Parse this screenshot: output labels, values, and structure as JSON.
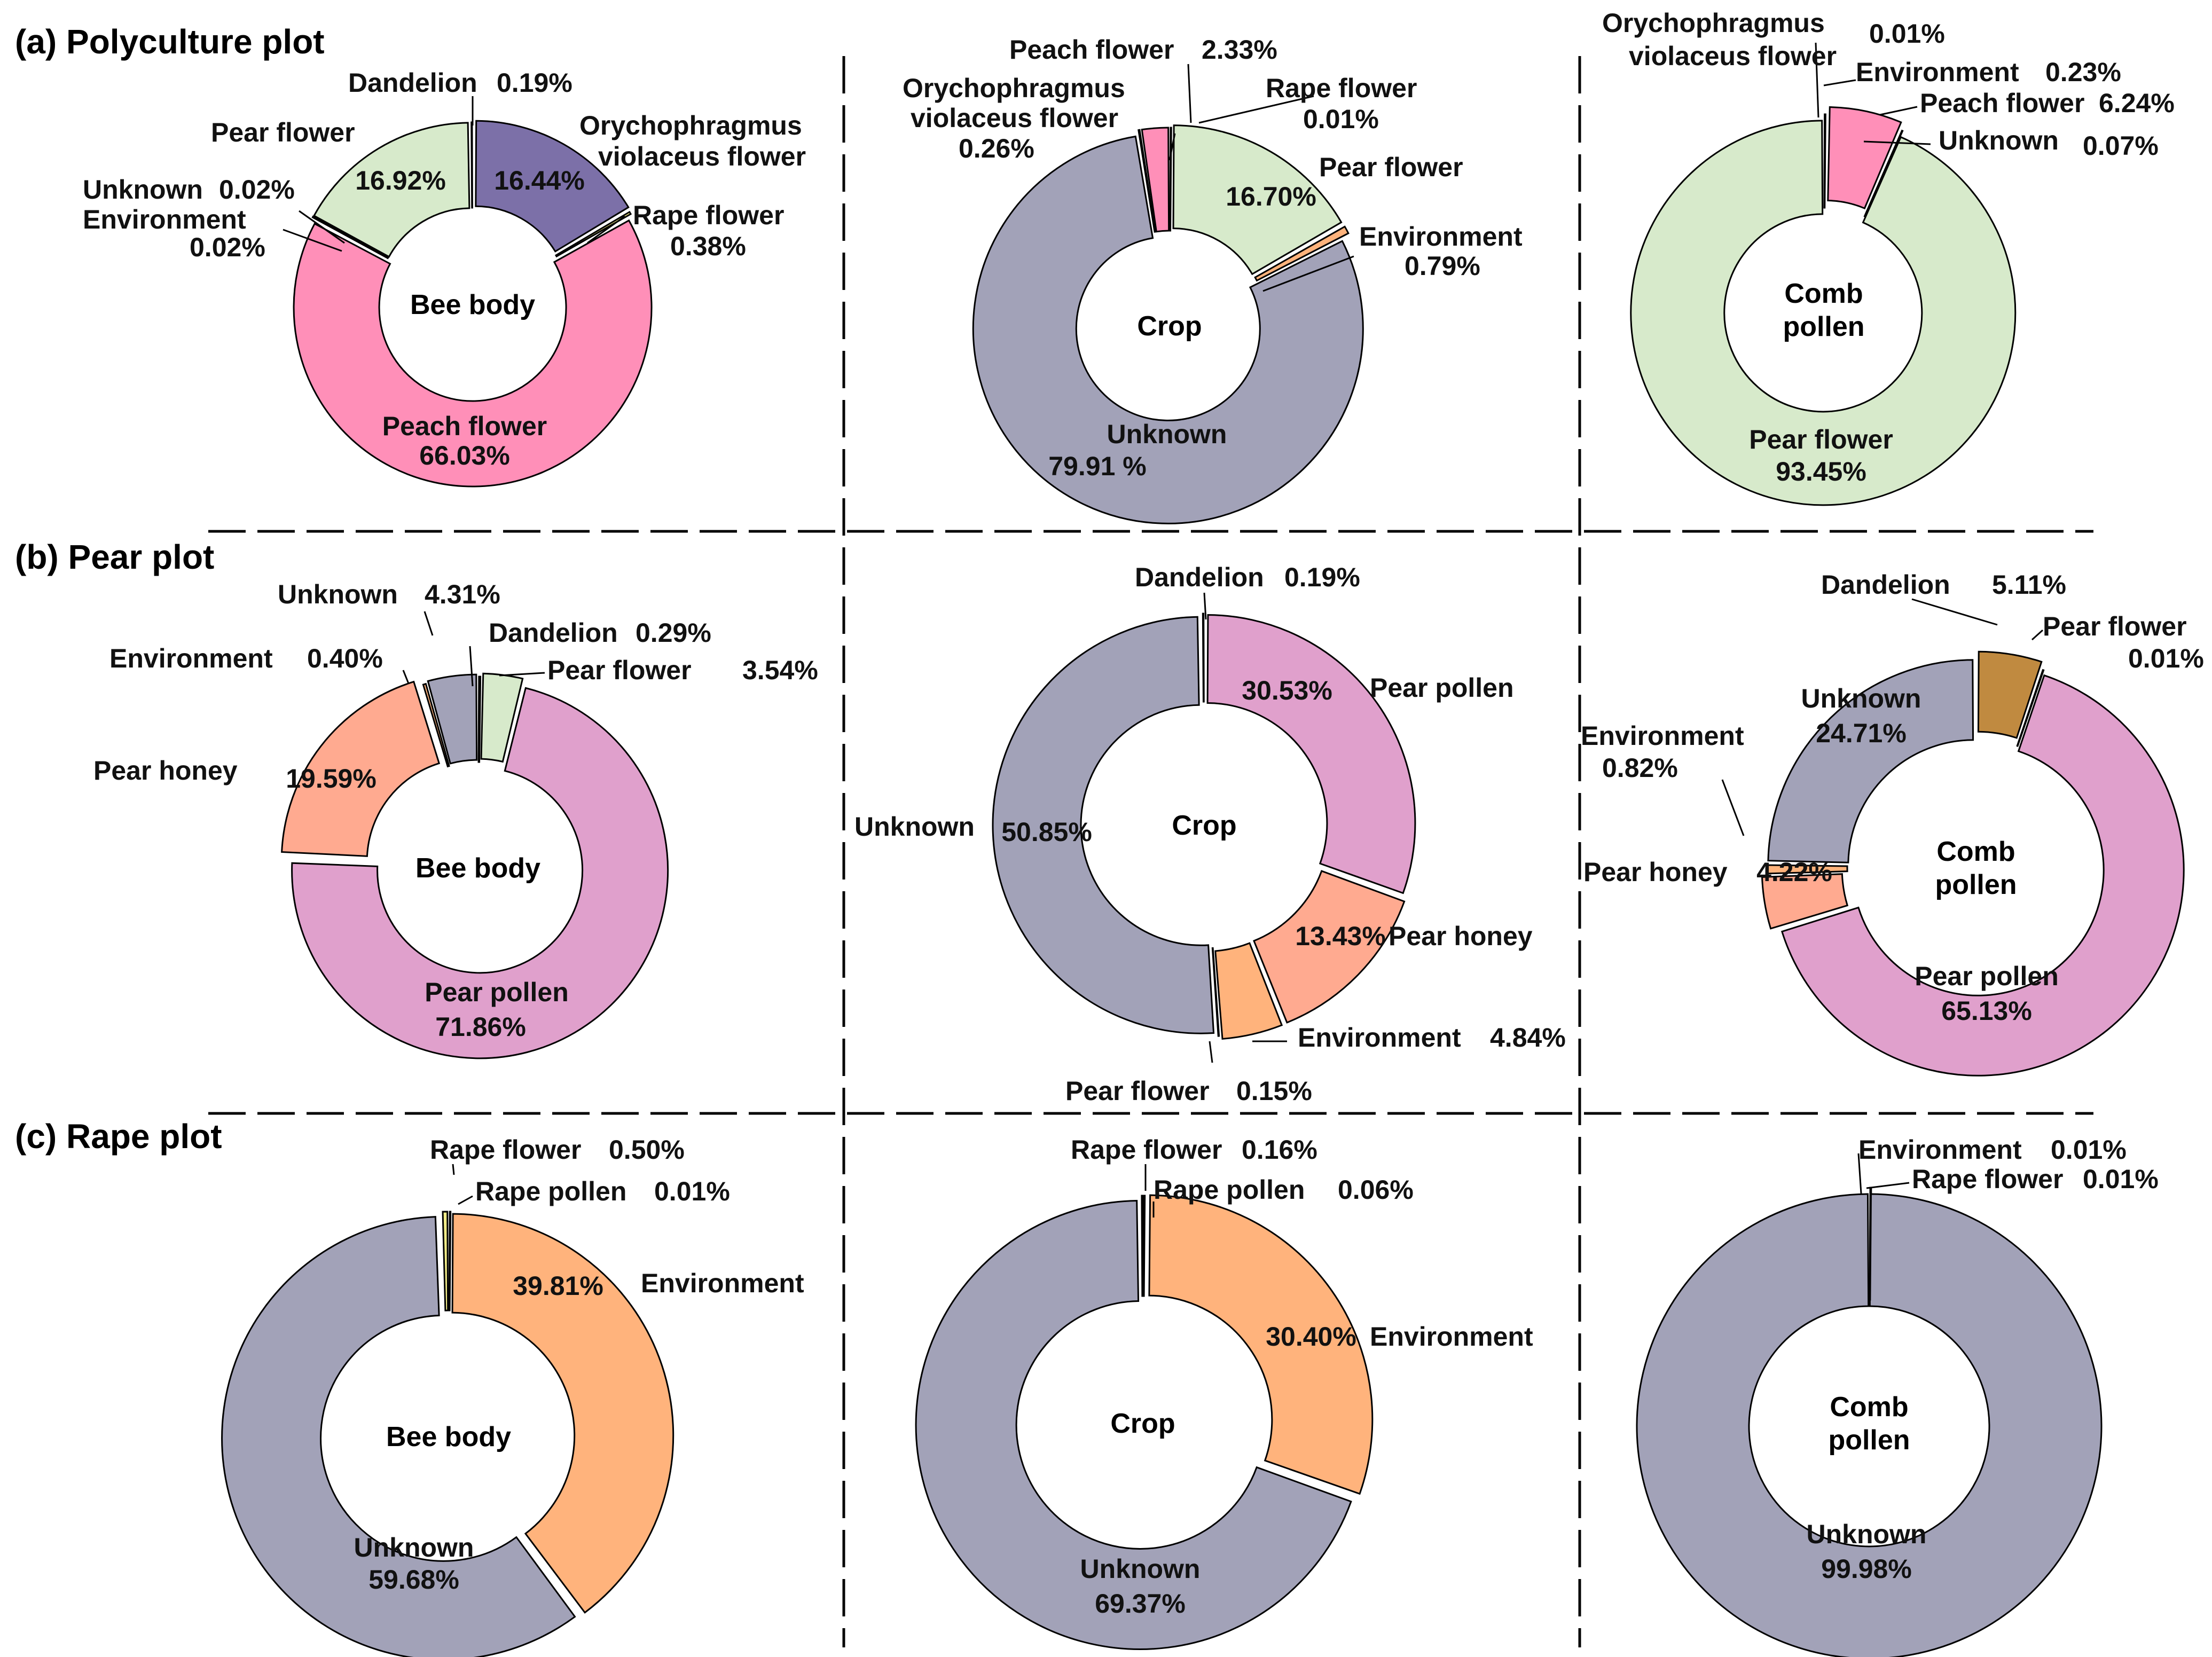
{
  "rows": [
    {
      "title": "(a) Polyculture plot"
    },
    {
      "title": "(b) Pear plot"
    },
    {
      "title": "(c) Rape plot"
    }
  ],
  "colors": {
    "Peach flower": "#FF8FB8",
    "Pear flower": "#D7EACB",
    "Orychophragmus violaceus flower": "#7C70A8",
    "Unknown": "#A2A2B8",
    "Environment": "#FFB37C",
    "Pear pollen": "#E0A0CC",
    "Pear honey": "#FFAA90",
    "Dandelion": "#C08A40",
    "Rape flower": "#F2EC88",
    "Rape pollen": "#F2EC88"
  },
  "chart_data": [
    {
      "id": "a1",
      "type": "pie",
      "title": "",
      "center_label": "Bee body",
      "slices": [
        {
          "label": "Orychophragmus violaceus flower",
          "value": 16.44,
          "text": "16.44%"
        },
        {
          "label": "Rape flower",
          "value": 0.38,
          "text": "0.38%"
        },
        {
          "label": "Peach flower",
          "value": 66.03,
          "text": "66.03%"
        },
        {
          "label": "Environment",
          "value": 0.02,
          "text": "0.02%"
        },
        {
          "label": "Unknown",
          "value": 0.02,
          "text": "0.02%"
        },
        {
          "label": "Pear flower",
          "value": 16.92,
          "text": "16.92%"
        },
        {
          "label": "Dandelion",
          "value": 0.19,
          "text": "0.19%"
        }
      ]
    },
    {
      "id": "a2",
      "type": "pie",
      "title": "",
      "center_label": "Crop",
      "slices": [
        {
          "label": "Rape flower",
          "value": 0.01,
          "text": "0.01%"
        },
        {
          "label": "Pear flower",
          "value": 16.7,
          "text": "16.70%"
        },
        {
          "label": "Environment",
          "value": 0.79,
          "text": "0.79%"
        },
        {
          "label": "Unknown",
          "value": 79.91,
          "text": "79.91 %"
        },
        {
          "label": "Orychophragmus violaceus flower",
          "value": 0.26,
          "text": "0.26%"
        },
        {
          "label": "Peach flower",
          "value": 2.33,
          "text": "2.33%"
        }
      ]
    },
    {
      "id": "a3",
      "type": "pie",
      "title": "",
      "center_label": "Comb pollen",
      "slices": [
        {
          "label": "Environment",
          "value": 0.23,
          "text": "0.23%"
        },
        {
          "label": "Peach flower",
          "value": 6.24,
          "text": "6.24%"
        },
        {
          "label": "Unknown",
          "value": 0.07,
          "text": "0.07%"
        },
        {
          "label": "Pear flower",
          "value": 93.45,
          "text": "93.45%"
        },
        {
          "label": "Orychophragmus violaceus flower",
          "value": 0.01,
          "text": "0.01%"
        }
      ]
    },
    {
      "id": "b1",
      "type": "pie",
      "title": "",
      "center_label": "Bee body",
      "slices": [
        {
          "label": "Dandelion",
          "value": 0.29,
          "text": "0.29%"
        },
        {
          "label": "Pear flower",
          "value": 3.54,
          "text": "3.54%"
        },
        {
          "label": "Pear pollen",
          "value": 71.86,
          "text": "71.86%"
        },
        {
          "label": "Pear honey",
          "value": 19.59,
          "text": "19.59%"
        },
        {
          "label": "Environment",
          "value": 0.4,
          "text": "0.40%"
        },
        {
          "label": "Unknown",
          "value": 4.31,
          "text": "4.31%"
        }
      ]
    },
    {
      "id": "b2",
      "type": "pie",
      "title": "",
      "center_label": "Crop",
      "slices": [
        {
          "label": "Pear pollen",
          "value": 30.53,
          "text": "30.53%"
        },
        {
          "label": "Pear honey",
          "value": 13.43,
          "text": "13.43%"
        },
        {
          "label": "Environment",
          "value": 4.84,
          "text": "4.84%"
        },
        {
          "label": "Pear flower",
          "value": 0.15,
          "text": "0.15%"
        },
        {
          "label": "Unknown",
          "value": 50.85,
          "text": "50.85%"
        },
        {
          "label": "Dandelion",
          "value": 0.19,
          "text": "0.19%"
        }
      ]
    },
    {
      "id": "b3",
      "type": "pie",
      "title": "",
      "center_label": "Comb pollen",
      "slices": [
        {
          "label": "Dandelion",
          "value": 5.11,
          "text": "5.11%"
        },
        {
          "label": "Pear flower",
          "value": 0.01,
          "text": "0.01%"
        },
        {
          "label": "Pear pollen",
          "value": 65.13,
          "text": "65.13%"
        },
        {
          "label": "Pear honey",
          "value": 4.22,
          "text": "4.22%"
        },
        {
          "label": "Environment",
          "value": 0.82,
          "text": "0.82%"
        },
        {
          "label": "Unknown",
          "value": 24.71,
          "text": "24.71%"
        }
      ]
    },
    {
      "id": "c1",
      "type": "pie",
      "title": "",
      "center_label": "Bee body",
      "slices": [
        {
          "label": "Rape pollen",
          "value": 0.01,
          "text": "0.01%"
        },
        {
          "label": "Environment",
          "value": 39.81,
          "text": "39.81%"
        },
        {
          "label": "Unknown",
          "value": 59.68,
          "text": "59.68%"
        },
        {
          "label": "Rape flower",
          "value": 0.5,
          "text": "0.50%"
        }
      ]
    },
    {
      "id": "c2",
      "type": "pie",
      "title": "",
      "center_label": "Crop",
      "slices": [
        {
          "label": "Rape pollen",
          "value": 0.06,
          "text": "0.06%"
        },
        {
          "label": "Environment",
          "value": 30.4,
          "text": "30.40%"
        },
        {
          "label": "Unknown",
          "value": 69.37,
          "text": "69.37%"
        },
        {
          "label": "Rape flower",
          "value": 0.16,
          "text": "0.16%"
        }
      ]
    },
    {
      "id": "c3",
      "type": "pie",
      "title": "",
      "center_label": "Comb pollen",
      "slices": [
        {
          "label": "Rape flower",
          "value": 0.01,
          "text": "0.01%"
        },
        {
          "label": "Unknown",
          "value": 99.98,
          "text": "99.98%"
        },
        {
          "label": "Environment",
          "value": 0.01,
          "text": "0.01%"
        }
      ]
    }
  ]
}
